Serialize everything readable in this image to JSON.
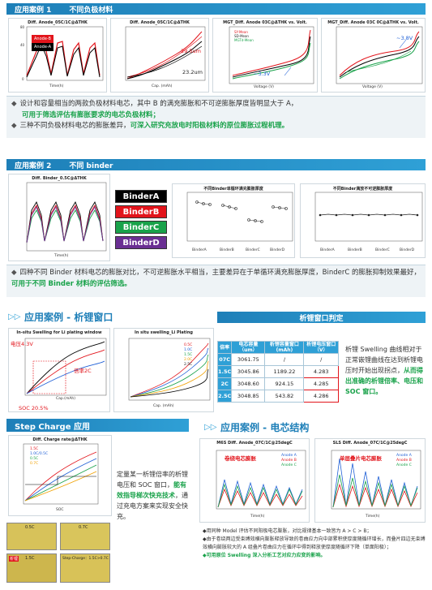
{
  "case1": {
    "title": "应用案例 1",
    "subtitle": "不同负极材料",
    "chart1": {
      "title": "Diff. Anode_05C/1C@ΔTHK",
      "xlabel": "Time(h)",
      "ylabel": "ΔTHK(um)",
      "legend": [
        "Anode-B",
        "Anode-A"
      ]
    },
    "chart2": {
      "title": "Diff. Anode_05C/1C@ΔTHK",
      "xlabel": "Cap. (mAh)",
      "ylabel": "ΔTHK(um)",
      "annot1": "29.5um",
      "annot2": "23.2um"
    },
    "chart3": {
      "title": "MGT_Diff. Anode 03C@ΔTHK vs. Volt.",
      "xlabel": "Voltage (V)",
      "ylabel": "ΔTHK (um)",
      "legend": [
        "SY-Mean",
        "SD-Mean",
        "MGTd-Mean"
      ],
      "annot": "~3.3V"
    },
    "chart4": {
      "title": "MGT_Diff. Anode 03C 0C@ΔTHK vs. Volt.",
      "xlabel": "Voltage (V)",
      "ylabel": "ΔTHK (um)",
      "annot": "~3.8V"
    },
    "text1_a": "设计和容量相当的两款负极材料电芯，其中 B 的满充膨胀和不可逆膨胀厚度皆明显大于 A，",
    "text1_b": "可用于筛选评估有膨胀要求的电芯负极材料；",
    "text2_a": "三种不同负极材料电芯的膨胀差异，",
    "text2_b": "可深入研究充放电时阳极材料的原位膨胀过程机理。"
  },
  "case2": {
    "title": "应用案例 2",
    "subtitle": "不同 binder",
    "chart1": {
      "title": "Diff. Binder_0.5C@ΔTHK",
      "xlabel": "Time(h)",
      "ylabel": "ΔTHK(um)"
    },
    "binders": [
      {
        "label": "BinderA",
        "color": "#000000"
      },
      {
        "label": "BinderB",
        "color": "#e2141b"
      },
      {
        "label": "BinderC",
        "color": "#19a24a"
      },
      {
        "label": "BinderD",
        "color": "#6a2f93"
      }
    ],
    "chart2": {
      "title": "不同Binder单循环满充膨胀厚度",
      "ylabel": "ΔTHK (um)",
      "groups": [
        "BinderA",
        "BinderB",
        "BinderC",
        "BinderD"
      ]
    },
    "chart3": {
      "title": "不同Binder满放不可逆膨胀厚度",
      "ylabel": "ΔTHK (um)",
      "groups": [
        "BinderA",
        "BinderB",
        "BinderC",
        "BinderD"
      ]
    },
    "text_a": "四种不同 Binder 材料电芯的膨胀对比，不可逆膨胀水平相当，主要差异在于单循环满充膨胀厚度，BinderC 的膨胀抑制效果最好，",
    "text_b": "可用于不同 Binder 材料的评估筛选。"
  },
  "case3": {
    "header": "应用案例 - 析锂窗口",
    "right_header": "析锂窗口判定",
    "chart1": {
      "title": "In-situ Swelling for Li plating window",
      "annot1": "电压4.3V",
      "annot2": "倍率2C",
      "annot3": "SOC 20.5%",
      "xlabel": "Cap.(mAh)"
    },
    "chart2": {
      "title": "In situ swelling_Li Plating",
      "legend": [
        "0.5C",
        "1.0C",
        "1.5C",
        "2.0C",
        "2.5C"
      ],
      "xlabel": "Cap. (mAh)"
    },
    "table": {
      "headers": [
        "倍率",
        "电芯容量（um）",
        "析锂容量窗口(mAh)",
        "析锂电压窗口（V）"
      ],
      "rows": [
        [
          "07C",
          "3061.75",
          "/",
          "/"
        ],
        [
          "1.5C",
          "3045.86",
          "1189.22",
          "4.283"
        ],
        [
          "2C",
          "3048.60",
          "924.15",
          "4.285"
        ],
        [
          "2.5C",
          "3048.85",
          "543.82",
          "4.286"
        ]
      ]
    },
    "desc_a": "析锂 Swelling 曲线相对于正常嵌锂曲线在达到析锂电压时开始出现拐点，",
    "desc_b": "从而得出准确的析锂倍率、电压和 SOC 窗口。"
  },
  "case4": {
    "header": "Step Charge 应用",
    "chart": {
      "title": "Diff. Charge rate@ΔTHK",
      "xlabel": "SOC",
      "legend": [
        "1.5C",
        "1.0C/0.5C",
        "0.5C",
        "0.7C"
      ]
    },
    "desc_a": "定量某一析锂倍率的析锂电压和 SOC 窗口，",
    "desc_b": "能有效指导梯次快充技术",
    "desc_c": "，通过充电方案来实现安全快充。",
    "photos": [
      "0.5C",
      "0.7C",
      "1.5C",
      "Step-Charge：1.5C>0.7C"
    ],
    "photo_tag": "析锂"
  },
  "case5": {
    "header": "应用案例 - 电芯结构",
    "chart1": {
      "title": "M6S Diff. Anode_07C/1C@25degC",
      "inner": "卷绕电芯膨胀",
      "legend": [
        "Anode A",
        "Anode B",
        "Anode C"
      ],
      "xlabel": "Time(h)",
      "ylabel": "ΔTHK%"
    },
    "chart2": {
      "title": "SLS Diff. Anode_07C/1C@25degC",
      "inner": "单层叠片电芯膨胀",
      "legend": [
        "Anode A",
        "Anode B",
        "Anode C"
      ],
      "xlabel": "Time(h)",
      "ylabel": "ΔTHK%"
    },
    "bullet1": "◆用同种 Model 评估不同阳极电芯膨胀，对比规律基本一致皆为 A > C > B；",
    "bullet2": "◆由于卷绕两边受束缚效横向膨胀释放导致的卷曲应力向中部累积使厚度随循环增长，而叠片四边无束缚效横向膨胀较大的 A 组叠片卷曲应力在循环中得到释放使厚度随循环下降（单面阳极）；",
    "bullet3": "◆可用原位 Swelling 深入分析工艺对应力应变的影响。"
  },
  "colors": {
    "accent": "#2fa0d6",
    "red": "#e2141b",
    "green": "#19a24a",
    "purple": "#6a2f93"
  }
}
